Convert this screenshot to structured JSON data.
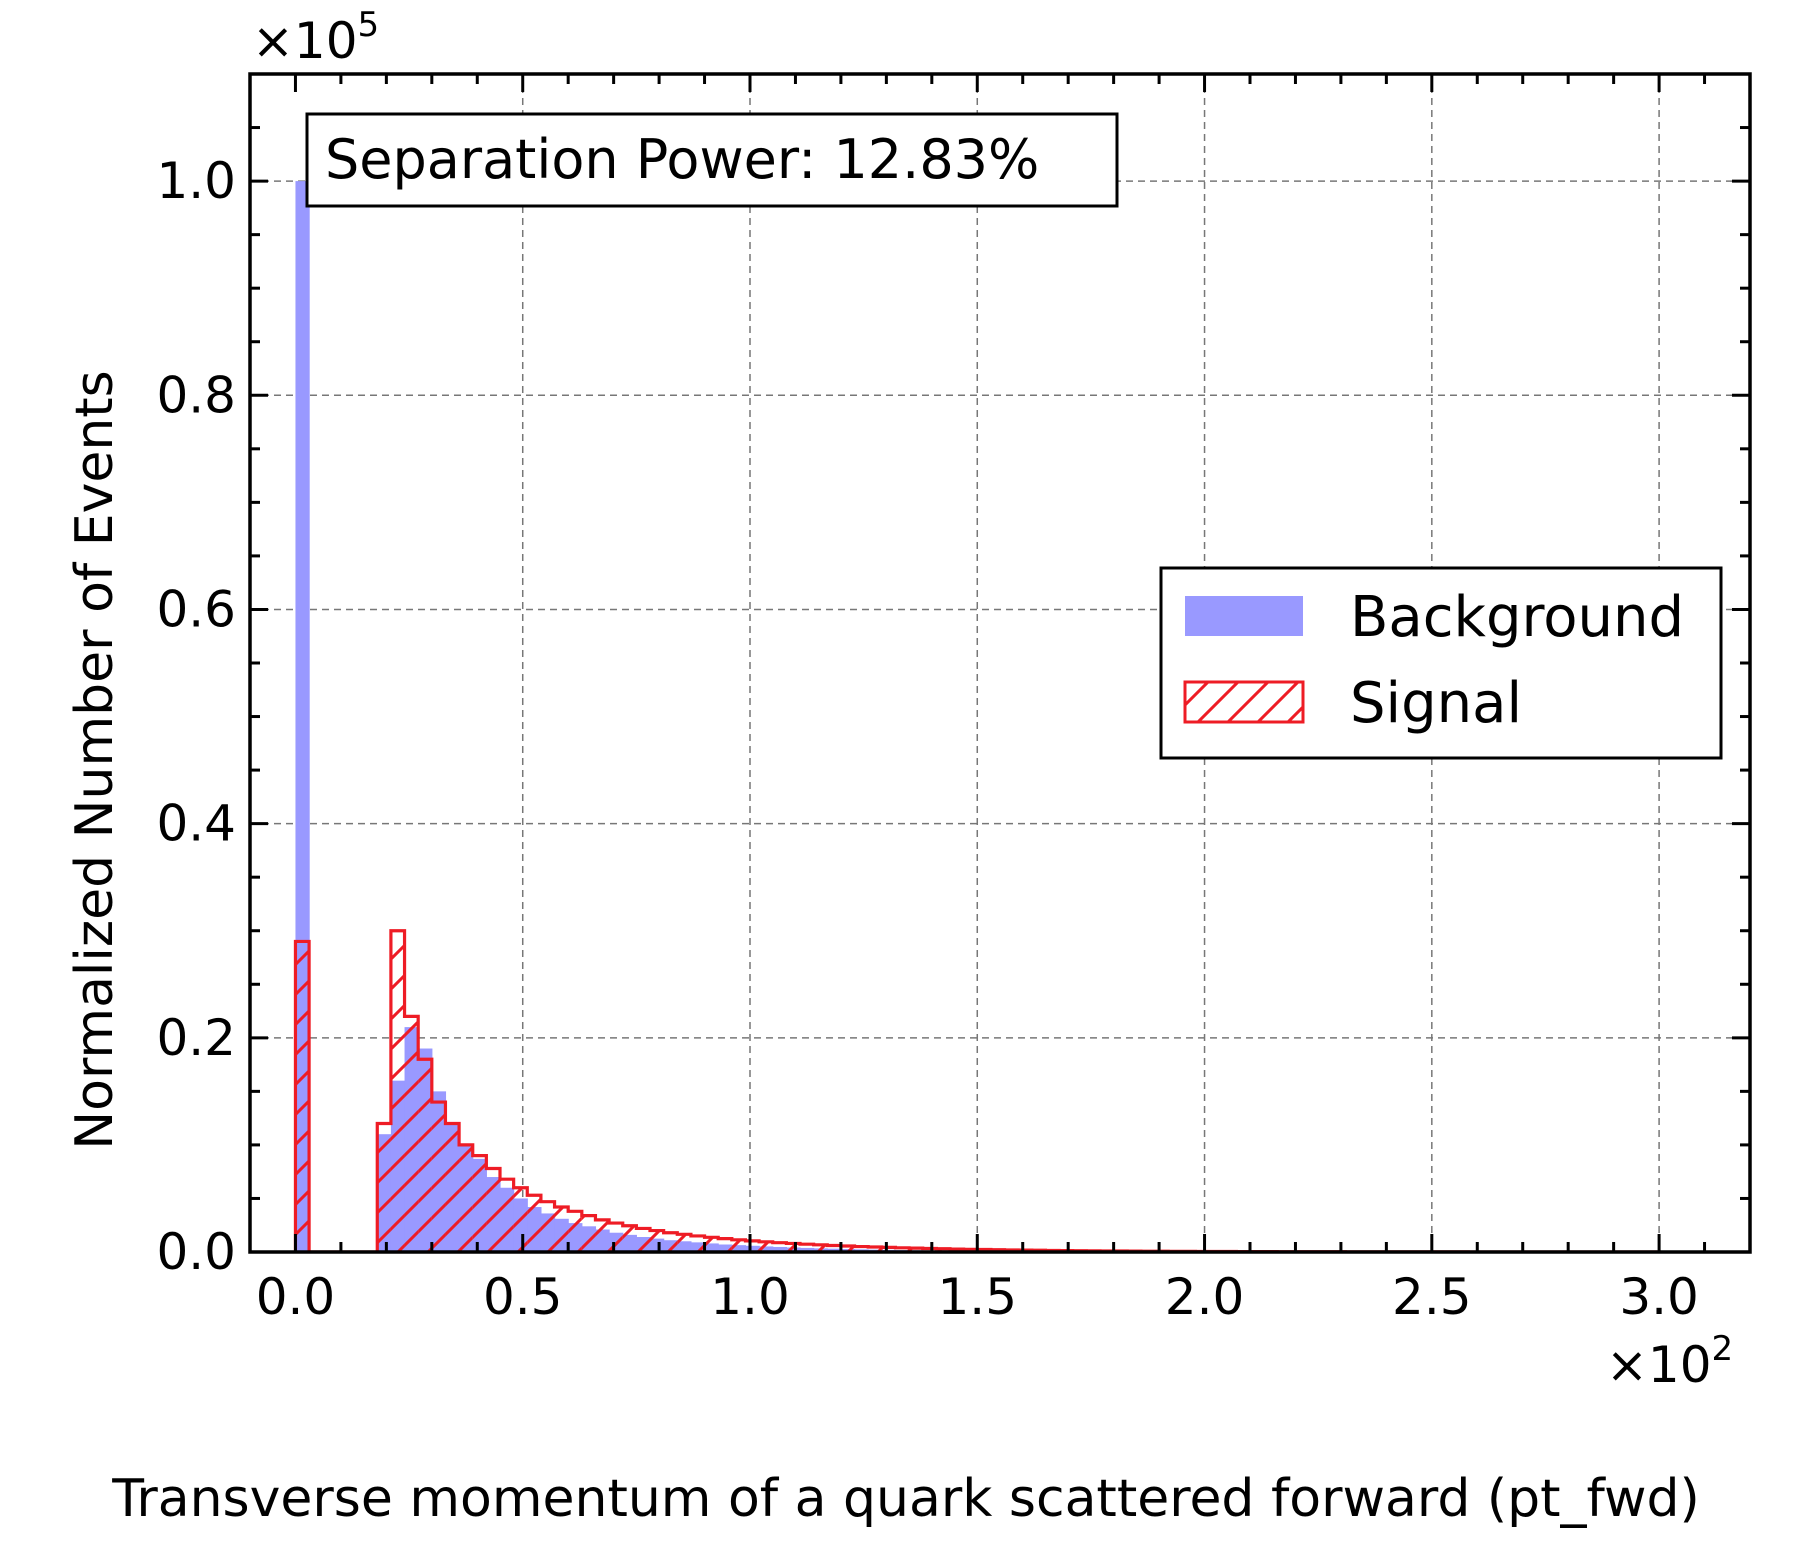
{
  "chart_data": {
    "type": "histogram",
    "xlabel": "Transverse momentum of a quark scattered forward (pt_fwd)",
    "ylabel": "Normalized Number of Events",
    "x_multiplier": "×10",
    "x_multiplier_exp": "2",
    "y_multiplier": "×10",
    "y_multiplier_exp": "5",
    "xlim": [
      -10,
      320
    ],
    "ylim": [
      0,
      110000
    ],
    "x_ticks": [
      0,
      50,
      100,
      150,
      200,
      250,
      300
    ],
    "x_tick_labels": [
      "0.0",
      "0.5",
      "1.0",
      "1.5",
      "2.0",
      "2.5",
      "3.0"
    ],
    "y_ticks": [
      0,
      20000,
      40000,
      60000,
      80000,
      100000
    ],
    "y_tick_labels": [
      "0.0",
      "0.2",
      "0.4",
      "0.6",
      "0.8",
      "1.0"
    ],
    "grid": true,
    "legend_position": "center-right",
    "annotation": "Separation Power: 12.83%",
    "bin_edges_start": 0,
    "bin_width": 3,
    "series": [
      {
        "name": "Background",
        "style": "filled",
        "color": "#9999ff",
        "values": [
          100000,
          0,
          0,
          0,
          0,
          0,
          11000,
          16000,
          21000,
          19000,
          15000,
          12000,
          10000,
          8700,
          7000,
          6000,
          5000,
          4200,
          3600,
          3100,
          2700,
          2400,
          2100,
          1800,
          1600,
          1400,
          1250,
          1100,
          1000,
          900,
          800,
          700,
          640,
          580,
          520,
          470,
          420,
          380,
          340,
          310,
          280,
          250,
          220,
          200,
          180,
          160,
          145,
          130,
          118,
          106,
          95,
          86,
          78,
          70,
          63,
          56,
          50,
          45,
          40,
          36,
          32,
          28,
          25,
          22,
          20,
          18,
          16,
          14,
          12,
          11,
          10,
          9,
          8,
          7,
          6,
          5,
          4,
          4,
          3,
          3,
          2,
          2,
          2,
          1,
          1,
          1,
          1,
          1,
          1,
          1,
          1,
          1,
          1,
          1,
          1,
          1,
          1,
          1,
          1,
          1
        ]
      },
      {
        "name": "Signal",
        "style": "hatched",
        "color": "#ee1c25",
        "values": [
          29000,
          0,
          0,
          0,
          0,
          0,
          12000,
          30000,
          22000,
          18000,
          14000,
          12000,
          10000,
          9000,
          7800,
          6800,
          6000,
          5300,
          4700,
          4200,
          3800,
          3400,
          3000,
          2700,
          2450,
          2200,
          2000,
          1800,
          1650,
          1500,
          1370,
          1250,
          1140,
          1040,
          950,
          870,
          800,
          730,
          670,
          610,
          560,
          510,
          470,
          430,
          390,
          360,
          330,
          300,
          275,
          250,
          230,
          210,
          190,
          175,
          160,
          145,
          132,
          120,
          110,
          100,
          92,
          84,
          76,
          70,
          64,
          58,
          53,
          48,
          44,
          40,
          36,
          33,
          30,
          27,
          25,
          22,
          20,
          18,
          17,
          15,
          14,
          13,
          12,
          11,
          10,
          9,
          8,
          7,
          7,
          6,
          6,
          5,
          5,
          4,
          4,
          4,
          3,
          3,
          3,
          2
        ]
      }
    ]
  }
}
